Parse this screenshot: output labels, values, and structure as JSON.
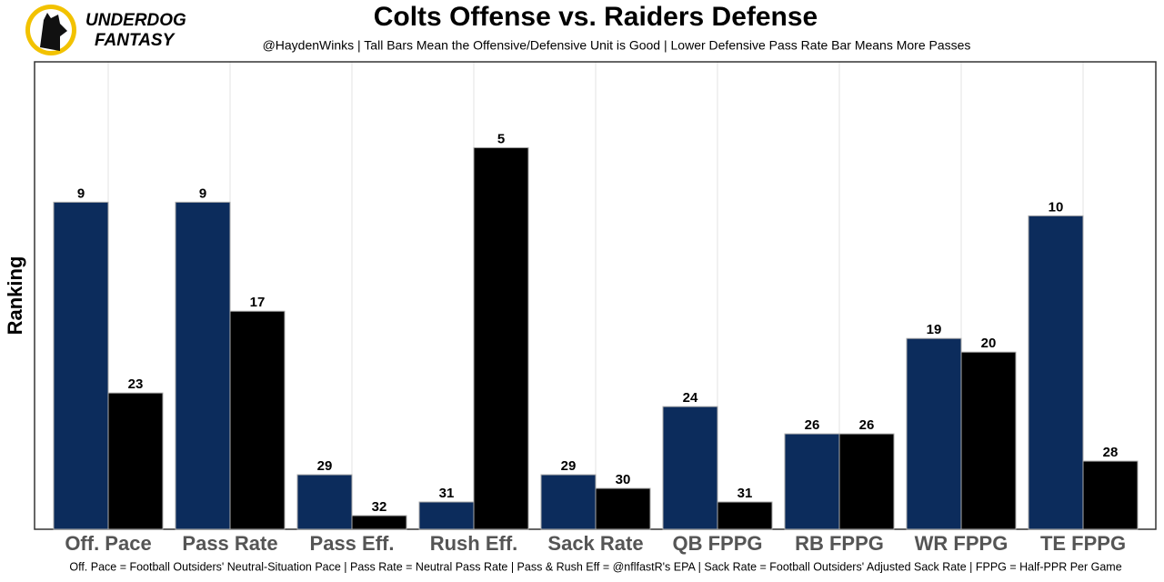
{
  "logo": {
    "line1": "UNDERDOG",
    "line2": "FANTASY"
  },
  "chart_data": {
    "type": "bar",
    "title": "Colts Offense vs. Raiders Defense",
    "subtitle": "@HaydenWinks | Tall Bars Mean the Offensive/Defensive Unit is Good | Lower Defensive Pass Rate Bar Means More Passes",
    "ylabel": "Ranking",
    "caption": "Off. Pace = Football Outsiders' Neutral-Situation Pace | Pass Rate = Neutral Pass Rate | Pass & Rush Eff = @nflfastR's EPA | Sack Rate = Football Outsiders' Adjusted Sack Rate | FPPG = Half-PPR Per Game",
    "categories": [
      "Off. Pace",
      "Pass Rate",
      "Pass Eff.",
      "Rush Eff.",
      "Sack Rate",
      "QB FPPG",
      "RB FPPG",
      "WR FPPG",
      "TE FPPG"
    ],
    "series": [
      {
        "color": "#0c2c5c",
        "values": [
          9,
          9,
          29,
          31,
          29,
          24,
          26,
          19,
          10
        ]
      },
      {
        "color": "#000000",
        "values": [
          23,
          17,
          32,
          5,
          30,
          31,
          26,
          20,
          28
        ]
      }
    ],
    "ylim": [
      33,
      -1.3
    ]
  }
}
